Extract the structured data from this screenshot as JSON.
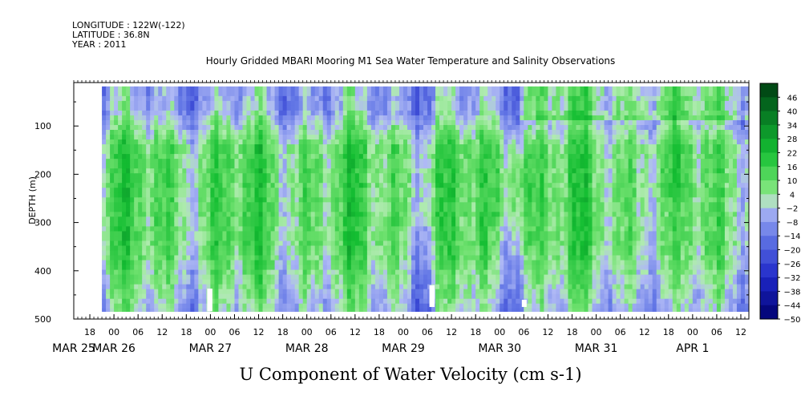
{
  "header": {
    "longitude": "LONGITUDE : 122W(-122)",
    "latitude": "LATITUDE : 36.8N",
    "year": "YEAR : 2011"
  },
  "chart_data": {
    "type": "heatmap",
    "title": "Hourly Gridded MBARI Mooring M1 Sea Water Temperature and Salinity Observations",
    "xlabel": "U Component of Water Velocity (cm s-1)",
    "ylabel": "DEPTH (m)",
    "x_axis": {
      "range_hours_from_mar25_0000": [
        14,
        182
      ],
      "hour_ticks": [
        {
          "h": 18,
          "label": "18"
        },
        {
          "h": 24,
          "label": "00"
        },
        {
          "h": 30,
          "label": "06"
        },
        {
          "h": 36,
          "label": "12"
        },
        {
          "h": 42,
          "label": "18"
        },
        {
          "h": 48,
          "label": "00"
        },
        {
          "h": 54,
          "label": "06"
        },
        {
          "h": 60,
          "label": "12"
        },
        {
          "h": 66,
          "label": "18"
        },
        {
          "h": 72,
          "label": "00"
        },
        {
          "h": 78,
          "label": "06"
        },
        {
          "h": 84,
          "label": "12"
        },
        {
          "h": 90,
          "label": "18"
        },
        {
          "h": 96,
          "label": "00"
        },
        {
          "h": 102,
          "label": "06"
        },
        {
          "h": 108,
          "label": "12"
        },
        {
          "h": 114,
          "label": "18"
        },
        {
          "h": 120,
          "label": "00"
        },
        {
          "h": 126,
          "label": "06"
        },
        {
          "h": 132,
          "label": "12"
        },
        {
          "h": 138,
          "label": "18"
        },
        {
          "h": 144,
          "label": "00"
        },
        {
          "h": 150,
          "label": "06"
        },
        {
          "h": 156,
          "label": "12"
        },
        {
          "h": 162,
          "label": "18"
        },
        {
          "h": 168,
          "label": "00"
        },
        {
          "h": 174,
          "label": "06"
        },
        {
          "h": 180,
          "label": "12"
        }
      ],
      "date_labels": [
        {
          "h": 14,
          "label": "MAR 25"
        },
        {
          "h": 24,
          "label": "MAR 26"
        },
        {
          "h": 48,
          "label": "MAR 27"
        },
        {
          "h": 72,
          "label": "MAR 28"
        },
        {
          "h": 96,
          "label": "MAR 29"
        },
        {
          "h": 120,
          "label": "MAR 30"
        },
        {
          "h": 144,
          "label": "MAR 31"
        },
        {
          "h": 168,
          "label": "APR  1"
        }
      ]
    },
    "y_axis": {
      "range_m": [
        10,
        500
      ],
      "inverted": true,
      "ticks": [
        100,
        200,
        300,
        400,
        500
      ],
      "data_depth_range_m": [
        18,
        484
      ]
    },
    "data_time_range_hours": [
      21,
      183
    ],
    "colorbar": {
      "levels": [
        46,
        40,
        34,
        28,
        22,
        16,
        10,
        4,
        -2,
        -8,
        -14,
        -20,
        -26,
        -32,
        -38,
        -44,
        -50
      ],
      "min": -50,
      "max": 50
    },
    "missing_data_gaps": [
      {
        "hour_range": [
          47.2,
          48.5
        ],
        "depth_range_m": [
          437,
          484
        ]
      },
      {
        "hour_range": [
          102.5,
          103.8
        ],
        "depth_range_m": [
          430,
          475
        ]
      },
      {
        "hour_range": [
          125.5,
          126.7
        ],
        "depth_range_m": [
          460,
          475
        ]
      }
    ],
    "field_description_values": {
      "dominant_range_cm_s": [
        -10,
        22
      ],
      "surface_layer_0_100m": "mostly negative (-2 to -14)",
      "mid_depth_150_350m": "mostly positive (4 to 22)",
      "strongest_positive_near": {
        "hour": 124,
        "depth_m": 220
      }
    }
  }
}
